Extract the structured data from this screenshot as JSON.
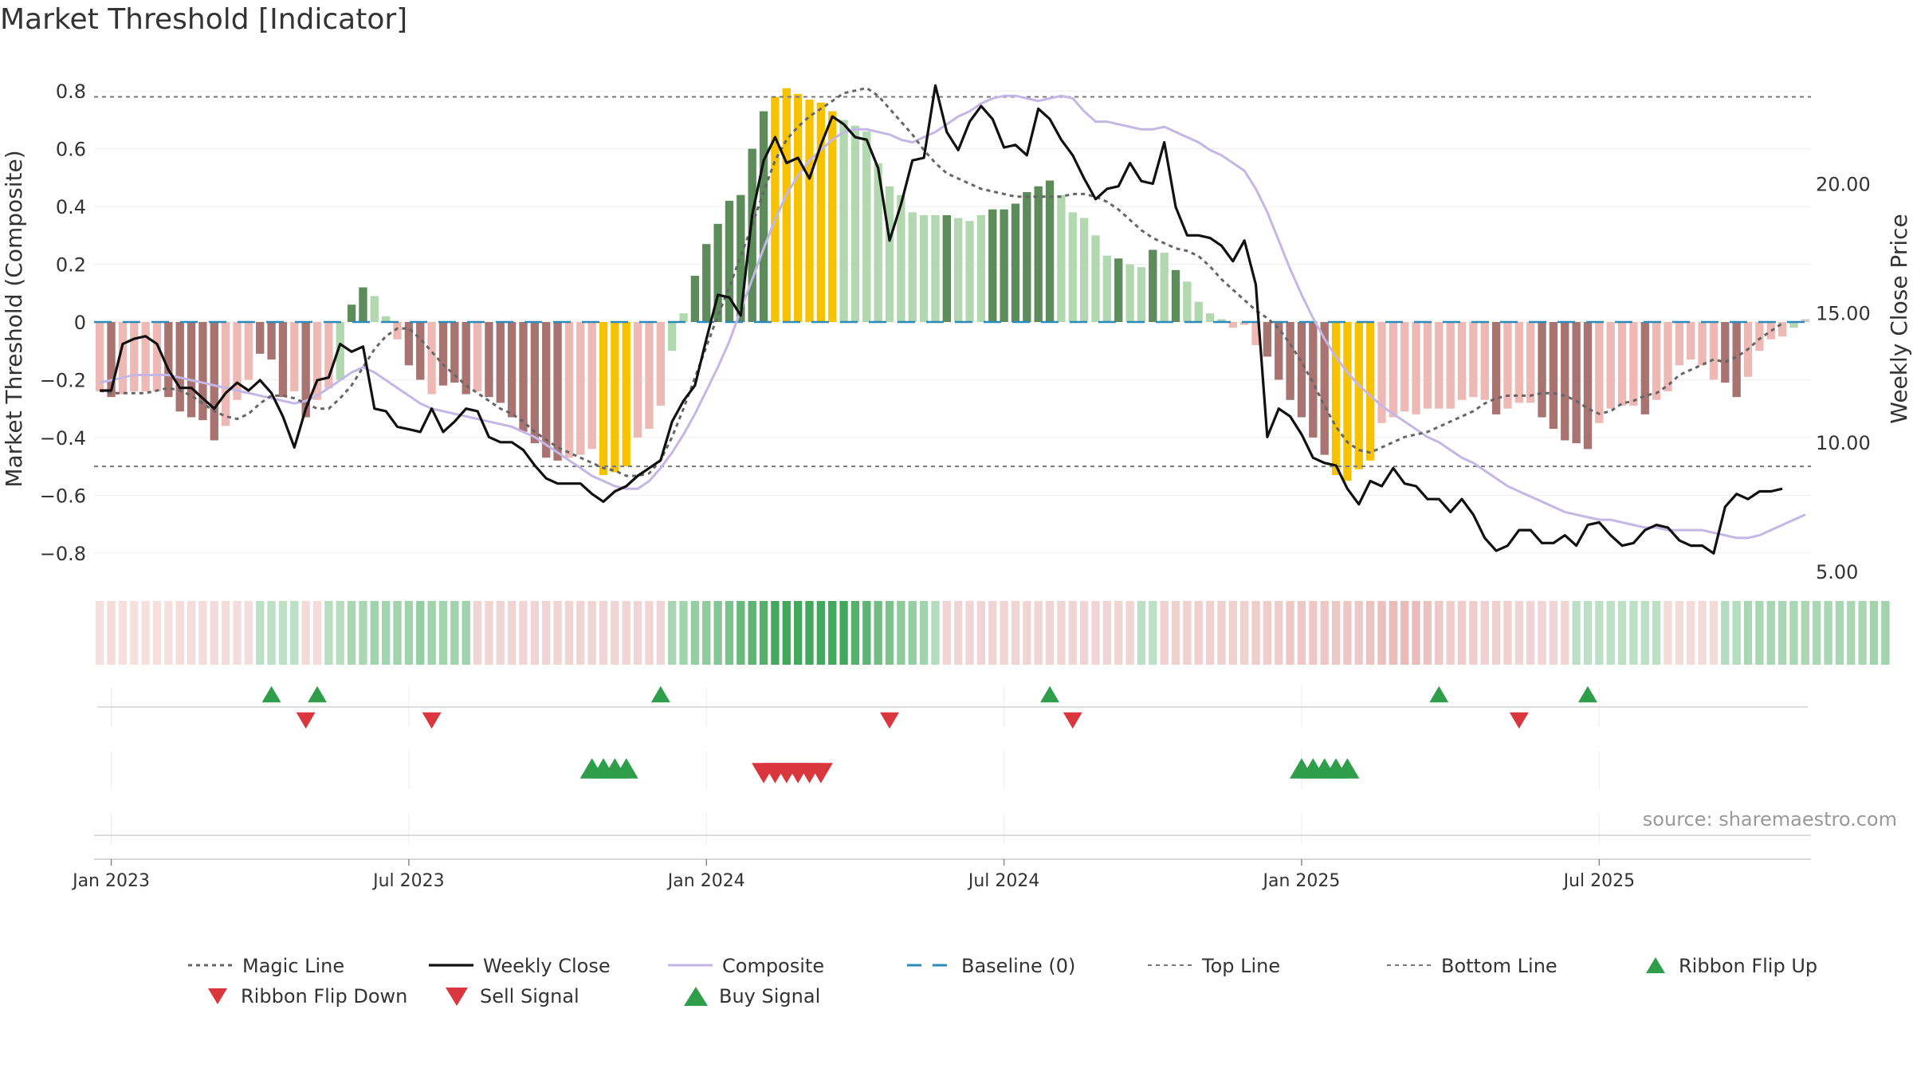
{
  "title": "Market Threshold [Indicator]",
  "source": "source: sharemaestro.com",
  "colors": {
    "strong_up": "#5b8c5a",
    "weak_up": "#b2d8b0",
    "strong_down": "#a87370",
    "weak_down": "#eeb9b5",
    "extreme": "#f7c200",
    "weekly_close": "#111111",
    "composite_line": "#c4b7e6",
    "magic_line": "#666666",
    "baseline": "#2a8ab8",
    "threshold_line": "#777777",
    "buy": "#2e9e4a",
    "sell": "#d9363e"
  },
  "legend": [
    {
      "key": "magic",
      "label": "Magic Line",
      "icon": "dotted-line-icon"
    },
    {
      "key": "close",
      "label": "Weekly Close",
      "icon": "solid-line-icon"
    },
    {
      "key": "composite",
      "label": "Composite",
      "icon": "solid-line-icon"
    },
    {
      "key": "baseline",
      "label": "Baseline (0)",
      "icon": "dashed-line-icon"
    },
    {
      "key": "top",
      "label": "Top Line",
      "icon": "dotted-line-icon"
    },
    {
      "key": "bottom",
      "label": "Bottom Line",
      "icon": "dotted-line-icon"
    },
    {
      "key": "flipup",
      "label": "Ribbon Flip Up",
      "icon": "triangle-up-icon"
    },
    {
      "key": "flipdown",
      "label": "Ribbon Flip Down",
      "icon": "triangle-down-icon"
    },
    {
      "key": "sell",
      "label": "Sell Signal",
      "icon": "triangle-down-icon"
    },
    {
      "key": "buy",
      "label": "Buy Signal",
      "icon": "triangle-up-icon"
    }
  ],
  "chart_data": {
    "type": "bar",
    "title": "Market Threshold [Indicator]",
    "ylabel": "Market Threshold (Composite)",
    "y2label": "Weekly Close Price",
    "ylim": [
      -0.9,
      0.9
    ],
    "y2lim": [
      4.6,
      24.7
    ],
    "yticks": [
      "0.8",
      "0.6",
      "0.4",
      "0.2",
      "0",
      "−0.2",
      "−0.4",
      "−0.6",
      "−0.8"
    ],
    "y2ticks": [
      "20.00",
      "15.00",
      "10.00",
      "5.00"
    ],
    "xlabels": [
      "Jan 2023",
      "Jul 2023",
      "Jan 2024",
      "Jul 2024",
      "Jan 2025",
      "Jul 2025"
    ],
    "xlabel_weeks": [
      1,
      27,
      53,
      79,
      105,
      131
    ],
    "top_line": 0.78,
    "bottom_line": -0.5,
    "baseline": 0,
    "composite": [
      -0.24,
      -0.26,
      -0.25,
      -0.24,
      -0.24,
      -0.24,
      -0.26,
      -0.31,
      -0.33,
      -0.34,
      -0.41,
      -0.36,
      -0.27,
      -0.2,
      -0.11,
      -0.13,
      -0.26,
      -0.24,
      -0.33,
      -0.27,
      -0.23,
      -0.2,
      0.06,
      0.12,
      0.09,
      0.02,
      -0.06,
      -0.15,
      -0.2,
      -0.25,
      -0.22,
      -0.21,
      -0.25,
      -0.24,
      -0.26,
      -0.28,
      -0.33,
      -0.38,
      -0.42,
      -0.47,
      -0.48,
      -0.47,
      -0.46,
      -0.44,
      -0.53,
      -0.52,
      -0.5,
      -0.4,
      -0.37,
      -0.29,
      -0.1,
      0.03,
      0.16,
      0.27,
      0.34,
      0.42,
      0.44,
      0.6,
      0.73,
      0.78,
      0.81,
      0.79,
      0.77,
      0.76,
      0.73,
      0.7,
      0.68,
      0.66,
      0.55,
      0.47,
      0.44,
      0.38,
      0.37,
      0.37,
      0.37,
      0.36,
      0.35,
      0.37,
      0.39,
      0.39,
      0.41,
      0.45,
      0.47,
      0.49,
      0.44,
      0.38,
      0.36,
      0.3,
      0.23,
      0.22,
      0.2,
      0.19,
      0.25,
      0.24,
      0.18,
      0.14,
      0.07,
      0.03,
      0.01,
      -0.02,
      -0.01,
      -0.08,
      -0.12,
      -0.2,
      -0.27,
      -0.33,
      -0.4,
      -0.46,
      -0.53,
      -0.55,
      -0.51,
      -0.48,
      -0.35,
      -0.33,
      -0.31,
      -0.32,
      -0.3,
      -0.3,
      -0.3,
      -0.27,
      -0.26,
      -0.27,
      -0.32,
      -0.3,
      -0.28,
      -0.28,
      -0.33,
      -0.37,
      -0.41,
      -0.42,
      -0.44,
      -0.35,
      -0.3,
      -0.29,
      -0.29,
      -0.32,
      -0.27,
      -0.24,
      -0.15,
      -0.13,
      -0.15,
      -0.2,
      -0.21,
      -0.26,
      -0.19,
      -0.1,
      -0.06,
      -0.05,
      -0.02,
      0.01
    ],
    "composite_types": [
      "wd",
      "sd",
      "wd",
      "wd",
      "wd",
      "wd",
      "sd",
      "sd",
      "sd",
      "sd",
      "sd",
      "wd",
      "wd",
      "wd",
      "sd",
      "sd",
      "sd",
      "wd",
      "sd",
      "wd",
      "wd",
      "wu",
      "su",
      "su",
      "wu",
      "wu",
      "wd",
      "sd",
      "sd",
      "wd",
      "sd",
      "sd",
      "sd",
      "wd",
      "sd",
      "sd",
      "sd",
      "sd",
      "sd",
      "sd",
      "sd",
      "wd",
      "wd",
      "wd",
      "ex",
      "ex",
      "ex",
      "wd",
      "wd",
      "wd",
      "wu",
      "wu",
      "su",
      "su",
      "su",
      "su",
      "su",
      "su",
      "su",
      "ex",
      "ex",
      "ex",
      "ex",
      "ex",
      "ex",
      "wu",
      "wu",
      "wu",
      "wu",
      "wu",
      "wu",
      "wu",
      "wu",
      "wu",
      "su",
      "wu",
      "wu",
      "wu",
      "su",
      "su",
      "su",
      "su",
      "su",
      "su",
      "wu",
      "wu",
      "wu",
      "wu",
      "wu",
      "su",
      "wu",
      "wu",
      "su",
      "wu",
      "su",
      "wu",
      "wu",
      "wu",
      "wu",
      "wd",
      "wd",
      "wd",
      "sd",
      "sd",
      "sd",
      "sd",
      "sd",
      "sd",
      "ex",
      "ex",
      "ex",
      "ex",
      "wd",
      "wd",
      "wd",
      "wd",
      "wd",
      "wd",
      "wd",
      "wd",
      "wd",
      "wd",
      "sd",
      "wd",
      "wd",
      "wd",
      "sd",
      "sd",
      "sd",
      "sd",
      "sd",
      "wd",
      "wd",
      "wd",
      "wd",
      "sd",
      "wd",
      "wd",
      "wd",
      "wd",
      "wd",
      "wd",
      "sd",
      "sd",
      "wd",
      "wd",
      "wd",
      "wd",
      "wu"
    ],
    "weekly_close": [
      12.0,
      12.0,
      13.8,
      14.0,
      14.1,
      13.8,
      12.8,
      12.1,
      12.1,
      11.7,
      11.3,
      11.9,
      12.3,
      12.0,
      12.4,
      11.9,
      11.0,
      9.8,
      11.3,
      12.4,
      12.5,
      13.8,
      13.5,
      13.7,
      11.3,
      11.2,
      10.6,
      10.5,
      10.4,
      11.3,
      10.4,
      10.8,
      11.3,
      11.2,
      10.2,
      10.0,
      10.0,
      9.7,
      9.1,
      8.6,
      8.4,
      8.4,
      8.4,
      8.0,
      7.7,
      8.1,
      8.3,
      8.7,
      9.0,
      9.3,
      10.8,
      11.6,
      12.2,
      14.0,
      15.7,
      15.6,
      14.9,
      18.8,
      20.9,
      21.8,
      20.8,
      21.0,
      20.2,
      21.5,
      22.6,
      22.3,
      21.8,
      21.7,
      20.6,
      17.8,
      19.2,
      20.9,
      21.0,
      23.8,
      22.0,
      21.3,
      22.4,
      23.0,
      22.5,
      21.4,
      21.5,
      21.1,
      22.9,
      22.5,
      21.7,
      21.1,
      20.2,
      19.4,
      19.8,
      19.9,
      20.8,
      20.1,
      20.0,
      21.6,
      19.1,
      18.0,
      18.0,
      17.9,
      17.6,
      17.0,
      17.8,
      16.1,
      10.2,
      11.3,
      11.0,
      10.3,
      9.4,
      9.2,
      9.1,
      8.2,
      7.6,
      8.5,
      8.3,
      9.0,
      8.4,
      8.3,
      7.8,
      7.8,
      7.3,
      7.8,
      7.2,
      6.3,
      5.8,
      6.0,
      6.6,
      6.6,
      6.1,
      6.1,
      6.4,
      6.0,
      6.8,
      6.9,
      6.4,
      6.0,
      6.1,
      6.6,
      6.8,
      6.7,
      6.2,
      6.0,
      6.0,
      5.7,
      7.5,
      8.0,
      7.8,
      8.1,
      8.1,
      8.2
    ],
    "composite_line": [
      12.3,
      12.4,
      12.5,
      12.6,
      12.6,
      12.6,
      12.6,
      12.5,
      12.4,
      12.3,
      12.2,
      12.1,
      12.0,
      11.9,
      11.8,
      11.7,
      11.6,
      11.5,
      11.6,
      11.8,
      12.1,
      12.4,
      12.7,
      12.9,
      12.7,
      12.4,
      12.1,
      11.8,
      11.5,
      11.3,
      11.2,
      11.1,
      11.0,
      10.9,
      10.8,
      10.7,
      10.6,
      10.4,
      10.2,
      9.9,
      9.6,
      9.3,
      9.0,
      8.7,
      8.5,
      8.3,
      8.2,
      8.2,
      8.5,
      9.0,
      9.6,
      10.3,
      11.1,
      12.0,
      12.9,
      13.9,
      15.1,
      16.3,
      17.5,
      18.6,
      19.6,
      20.3,
      20.9,
      21.3,
      21.7,
      22.0,
      22.1,
      22.1,
      22.0,
      21.9,
      21.7,
      21.6,
      21.8,
      22.0,
      22.3,
      22.6,
      22.8,
      23.1,
      23.3,
      23.4,
      23.4,
      23.3,
      23.2,
      23.3,
      23.4,
      23.3,
      22.8,
      22.4,
      22.4,
      22.3,
      22.2,
      22.1,
      22.1,
      22.2,
      22.0,
      21.8,
      21.6,
      21.3,
      21.1,
      20.8,
      20.5,
      19.8,
      18.9,
      17.8,
      16.7,
      15.7,
      14.8,
      14.0,
      13.3,
      12.7,
      12.2,
      11.8,
      11.4,
      11.1,
      10.8,
      10.5,
      10.2,
      10.0,
      9.7,
      9.4,
      9.2,
      8.9,
      8.6,
      8.3,
      8.1,
      7.9,
      7.7,
      7.5,
      7.3,
      7.2,
      7.1,
      7.0,
      7.0,
      6.9,
      6.8,
      6.7,
      6.7,
      6.6,
      6.6,
      6.6,
      6.6,
      6.5,
      6.4,
      6.3,
      6.3,
      6.4,
      6.6,
      6.8,
      7.0,
      7.2
    ],
    "magic_line": [
      12.0,
      11.9,
      11.9,
      11.9,
      11.9,
      12.0,
      12.1,
      12.0,
      11.8,
      11.5,
      11.2,
      11.0,
      10.9,
      11.1,
      11.5,
      11.8,
      11.8,
      11.7,
      11.5,
      11.3,
      11.3,
      11.7,
      12.2,
      12.9,
      13.6,
      14.1,
      14.4,
      14.4,
      14.0,
      13.5,
      13.0,
      12.6,
      12.2,
      11.9,
      11.6,
      11.3,
      11.1,
      10.8,
      10.4,
      10.1,
      9.8,
      9.6,
      9.4,
      9.2,
      9.0,
      8.9,
      8.7,
      8.7,
      8.8,
      9.3,
      10.2,
      11.3,
      12.5,
      13.7,
      14.9,
      16.0,
      17.2,
      18.4,
      19.7,
      20.9,
      21.7,
      22.2,
      22.6,
      22.9,
      23.2,
      23.5,
      23.6,
      23.7,
      23.4,
      22.9,
      22.4,
      21.9,
      21.3,
      20.8,
      20.4,
      20.2,
      20.0,
      19.8,
      19.7,
      19.6,
      19.5,
      19.5,
      19.5,
      19.5,
      19.5,
      19.6,
      19.6,
      19.5,
      19.3,
      19.0,
      18.6,
      18.2,
      17.9,
      17.7,
      17.5,
      17.4,
      17.2,
      16.8,
      16.3,
      15.9,
      15.5,
      15.1,
      14.8,
      14.4,
      13.8,
      13.1,
      12.3,
      11.4,
      10.6,
      10.0,
      9.7,
      9.6,
      9.8,
      10.0,
      10.2,
      10.3,
      10.4,
      10.6,
      10.8,
      11.0,
      11.2,
      11.5,
      11.7,
      11.8,
      11.8,
      11.8,
      11.9,
      11.9,
      11.8,
      11.6,
      11.3,
      11.1,
      11.2,
      11.5,
      11.6,
      11.8,
      11.9,
      12.2,
      12.6,
      12.8,
      13.0,
      13.2,
      13.1,
      13.3,
      13.6,
      14.0,
      14.3,
      14.6
    ],
    "ribbon": [
      -0.35,
      -0.38,
      -0.35,
      -0.35,
      -0.35,
      -0.35,
      -0.35,
      -0.38,
      -0.38,
      -0.38,
      -0.4,
      -0.38,
      -0.37,
      -0.37,
      0.35,
      0.35,
      0.35,
      0.35,
      -0.4,
      -0.38,
      0.38,
      0.38,
      0.45,
      0.45,
      0.5,
      0.5,
      0.5,
      0.5,
      0.55,
      0.5,
      0.5,
      0.5,
      0.5,
      -0.45,
      -0.45,
      -0.45,
      -0.45,
      -0.45,
      -0.45,
      -0.45,
      -0.45,
      -0.45,
      -0.45,
      -0.45,
      -0.45,
      -0.45,
      -0.45,
      -0.45,
      -0.45,
      -0.45,
      0.45,
      0.5,
      0.55,
      0.6,
      0.65,
      0.7,
      0.8,
      0.85,
      0.9,
      1.0,
      1.0,
      1.0,
      1.0,
      1.0,
      1.0,
      1.0,
      0.9,
      0.85,
      0.75,
      0.7,
      0.6,
      0.55,
      0.5,
      0.4,
      -0.45,
      -0.45,
      -0.45,
      -0.45,
      -0.45,
      -0.45,
      -0.45,
      -0.45,
      -0.45,
      -0.45,
      -0.45,
      -0.45,
      -0.45,
      -0.45,
      -0.45,
      -0.45,
      -0.45,
      0.35,
      0.35,
      -0.5,
      -0.5,
      -0.5,
      -0.5,
      -0.5,
      -0.5,
      -0.5,
      -0.5,
      -0.55,
      -0.55,
      -0.55,
      -0.6,
      -0.6,
      -0.6,
      -0.6,
      -0.6,
      -0.6,
      -0.6,
      -0.65,
      -0.7,
      -0.75,
      -0.75,
      -0.75,
      -0.65,
      -0.6,
      -0.55,
      -0.55,
      -0.55,
      -0.5,
      -0.5,
      -0.5,
      -0.45,
      -0.45,
      -0.45,
      -0.45,
      -0.45,
      0.35,
      0.35,
      0.35,
      0.35,
      0.35,
      0.35,
      0.35,
      0.35,
      -0.4,
      -0.4,
      -0.4,
      -0.4,
      -0.4,
      0.4,
      0.4,
      0.45,
      0.45,
      0.45,
      0.45,
      0.45,
      0.45,
      0.45,
      0.45,
      0.45,
      0.45,
      0.45,
      0.5,
      0.5
    ],
    "ribbon_flip_up": [
      15,
      19,
      49,
      83,
      117,
      130
    ],
    "ribbon_flip_down": [
      18,
      29,
      69,
      85,
      124
    ],
    "buy_signal": [
      43,
      44,
      45,
      46,
      105,
      106,
      107,
      108,
      109
    ],
    "sell_signal": [
      58,
      59,
      60,
      61,
      62,
      63
    ]
  }
}
